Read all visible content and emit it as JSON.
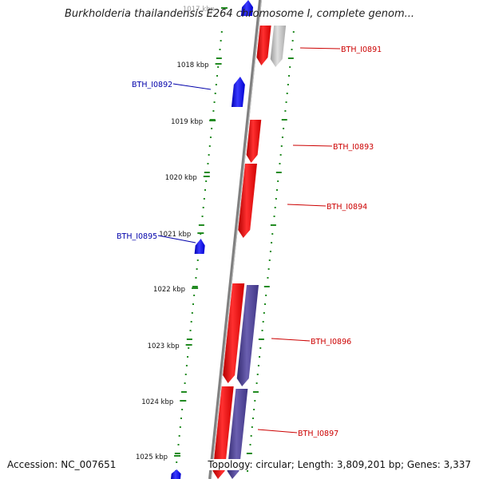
{
  "title": "Burkholderia thailandensis E264 chromosome I, complete genom...",
  "footer": {
    "accession": "Accession: NC_007651",
    "topology": "Topology: circular; Length: 3,809,201 bp; Genes: 3,337"
  },
  "colors": {
    "forward_gene": "#ff0000",
    "reverse_gene": "#0000ff",
    "cds_track": "#4a3f8f",
    "grey_feature": "#b8b8b8",
    "ruler_ticks": "#228b22",
    "forward_label": "#cc0000",
    "reverse_label": "#0000aa",
    "backbone": "#808080"
  },
  "ruler": {
    "start_kbp": 1017,
    "end_kbp": 1025,
    "labels": [
      "1017 kbp",
      "1018 kbp",
      "1019 kbp",
      "1020 kbp",
      "1021 kbp",
      "1022 kbp",
      "1023 kbp",
      "1024 kbp",
      "1025 kbp"
    ]
  },
  "genes": [
    {
      "name": "BTH_I0891",
      "strand": "+",
      "track": "forward"
    },
    {
      "name": "",
      "strand": "+",
      "track": "grey"
    },
    {
      "name": "BTH_I0892",
      "strand": "-",
      "track": "reverse"
    },
    {
      "name": "BTH_I0893",
      "strand": "+",
      "track": "forward"
    },
    {
      "name": "BTH_I0894",
      "strand": "+",
      "track": "forward"
    },
    {
      "name": "BTH_I0895",
      "strand": "-",
      "track": "reverse"
    },
    {
      "name": "BTH_I0896",
      "strand": "+",
      "track": "forward"
    },
    {
      "name": "",
      "strand": "+",
      "track": "cds"
    },
    {
      "name": "BTH_I0897",
      "strand": "+",
      "track": "forward"
    },
    {
      "name": "",
      "strand": "+",
      "track": "cds"
    },
    {
      "name": "",
      "strand": "-",
      "track": "reverse"
    },
    {
      "name": "",
      "strand": "-",
      "track": "reverse"
    }
  ]
}
